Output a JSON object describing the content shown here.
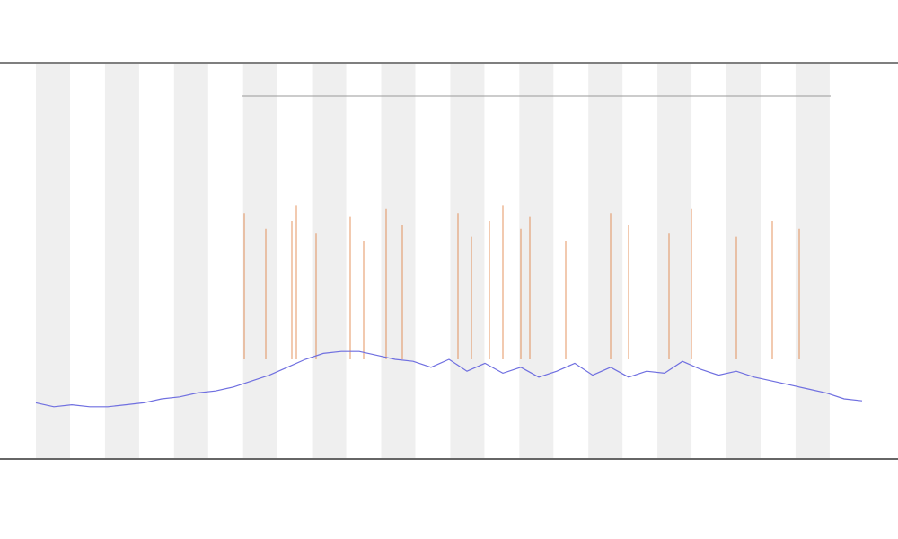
{
  "chart_data": {
    "type": "line",
    "xlim": [
      0,
      92
    ],
    "ylim": [
      0,
      100
    ],
    "series": [
      {
        "color": "#6f6fe0",
        "x": [
          0,
          2,
          4,
          6,
          8,
          10,
          12,
          14,
          16,
          18,
          20,
          22,
          24,
          26,
          28,
          30,
          32,
          34,
          36,
          38,
          40,
          42,
          44,
          46,
          48,
          50,
          52,
          54,
          56,
          58,
          60,
          62,
          64,
          66,
          68,
          70,
          72,
          74,
          76,
          78,
          80,
          82,
          84,
          86,
          88,
          90,
          92
        ],
        "values": [
          14,
          13,
          13.5,
          13,
          13,
          13.5,
          14,
          15,
          15.5,
          16.5,
          17,
          18,
          19.5,
          21,
          23,
          25,
          26.5,
          27,
          27,
          26,
          25,
          24.5,
          23,
          25,
          22,
          24,
          21.5,
          23,
          20.5,
          22,
          24,
          21,
          23,
          20.5,
          22,
          21.5,
          24.5,
          22.5,
          21,
          22,
          20.5,
          19.5,
          18.5,
          17.5,
          16.5,
          15,
          14.5
        ]
      }
    ],
    "spikes": {
      "color": "#e07a3a",
      "x": [
        23.2,
        25.6,
        28.5,
        29,
        31.2,
        35,
        36.5,
        39,
        40.8,
        47,
        48.5,
        50.5,
        52,
        54,
        55,
        59,
        64,
        66,
        70.5,
        73,
        78,
        82,
        85
      ],
      "values": [
        62,
        58,
        60,
        64,
        57,
        61,
        55,
        63,
        59,
        62,
        56,
        60,
        64,
        58,
        61,
        55,
        62,
        59,
        57,
        63,
        56,
        60,
        58
      ]
    }
  }
}
